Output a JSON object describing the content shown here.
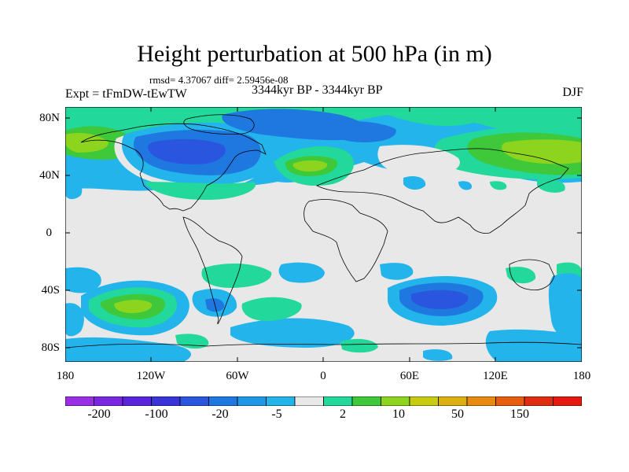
{
  "title": "Height perturbation at 500 hPa (in m)",
  "stats": "rmsd= 4.37067 diff= 2.59456e-08",
  "period": "3344kyr BP - 3344kyr BP",
  "experiment": "Expt = tFmDW-tEwTW",
  "season": "DJF",
  "lat_labels": [
    "80N",
    "40N",
    "0",
    "40S",
    "80S"
  ],
  "lon_labels": [
    "180",
    "120W",
    "60W",
    "0",
    "60E",
    "120E",
    "180"
  ],
  "colorbar": {
    "labels": [
      "-200",
      "-100",
      "-20",
      "-5",
      "2",
      "10",
      "50",
      "150"
    ],
    "colors": [
      "#9b2fe6",
      "#7a27e2",
      "#5a25da",
      "#3a34d8",
      "#2a55de",
      "#1f78e0",
      "#1e98e6",
      "#22b4ea",
      "#e8e8e8",
      "#22d89a",
      "#3ec83a",
      "#8cd41e",
      "#c8cc10",
      "#dcb010",
      "#e88a10",
      "#e85c10",
      "#e02c10",
      "#e41a10"
    ]
  },
  "chart_data": {
    "type": "filled-contour-map",
    "title": "Height perturbation at 500 hPa (in m)",
    "projection": "cylindrical equidistant",
    "lon_range": [
      -180,
      180
    ],
    "lat_range": [
      -90,
      90
    ],
    "features": [
      {
        "name": "North America negative anomaly",
        "center": [
          -110,
          55
        ],
        "min_level": -20
      },
      {
        "name": "North Atlantic positive anomaly",
        "center": [
          -25,
          45
        ],
        "max_level": 10
      },
      {
        "name": "Arctic / North Eurasia negative anomaly",
        "center": [
          -30,
          75
        ],
        "min_level": -20
      },
      {
        "name": "North Pacific positive anomaly",
        "center": [
          160,
          55
        ],
        "max_level": 10
      },
      {
        "name": "South Pacific positive anomaly",
        "center": [
          -140,
          -50
        ],
        "max_level": 10
      },
      {
        "name": "South Indian Ocean negative anomaly",
        "center": [
          65,
          -50
        ],
        "min_level": -20
      },
      {
        "name": "South Atlantic positive anomaly",
        "center": [
          -30,
          -60
        ],
        "max_level": 2
      }
    ]
  }
}
